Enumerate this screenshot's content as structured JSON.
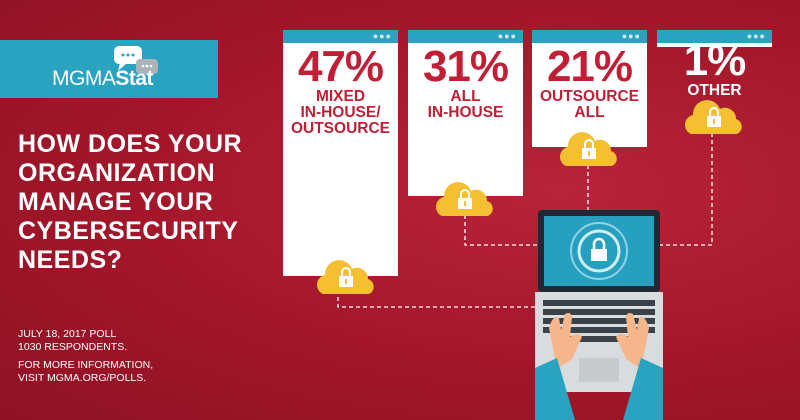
{
  "logo": {
    "text_light": "MGMA",
    "text_bold": "Stat"
  },
  "question": "HOW DOES YOUR ORGANIZATION MANAGE YOUR CYBERSECURITY NEEDS?",
  "footer": {
    "poll": "JULY 18, 2017 POLL",
    "respondents": "1030 RESPONDENTS.",
    "more1": "FOR MORE INFORMATION,",
    "more2": "VISIT MGMA.ORG/POLLS."
  },
  "colors": {
    "background": "#a5172b",
    "accent": "#2aa3c0",
    "text_red": "#c01f36",
    "cloud": "#f5bf32"
  },
  "chart_data": {
    "type": "bar",
    "categories": [
      "MIXED IN-HOUSE/ OUTSOURCE",
      "ALL IN-HOUSE",
      "OUTSOURCE ALL",
      "OTHER"
    ],
    "values": [
      47,
      31,
      21,
      1
    ],
    "value_labels": [
      "47%",
      "31%",
      "21%",
      "1%"
    ],
    "label_lines": [
      [
        "MIXED",
        "IN-HOUSE/",
        "OUTSOURCE"
      ],
      [
        "ALL",
        "IN-HOUSE"
      ],
      [
        "OUTSOURCE",
        "ALL"
      ],
      [
        "OTHER"
      ]
    ],
    "unit": "%"
  },
  "icons": {
    "panel": "window-icon",
    "cloud": "cloud-lock-icon",
    "device": "laptop-lock-icon",
    "hands": "typing-hands"
  }
}
